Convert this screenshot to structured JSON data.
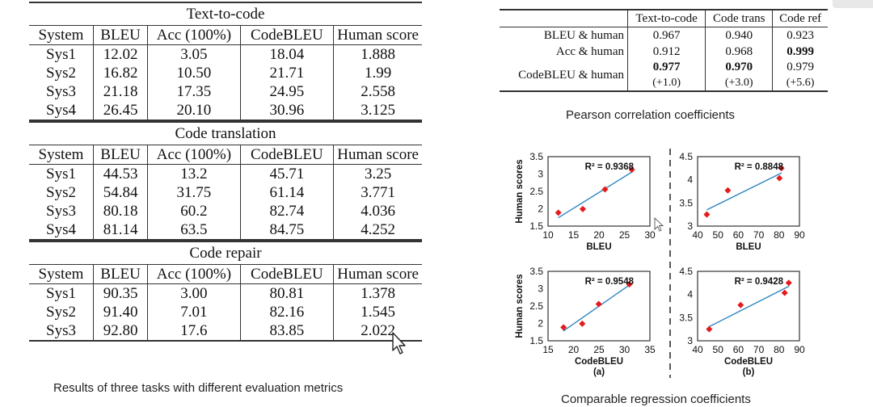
{
  "tasks_table": {
    "caption": "Results of three tasks with different evaluation metrics",
    "headers": [
      "System",
      "BLEU",
      "Acc (100%)",
      "CodeBLEU",
      "Human score"
    ],
    "sections": [
      {
        "title": "Text-to-code",
        "rows": [
          [
            "Sys1",
            "12.02",
            "3.05",
            "18.04",
            "1.888"
          ],
          [
            "Sys2",
            "16.82",
            "10.50",
            "21.71",
            "1.99"
          ],
          [
            "Sys3",
            "21.18",
            "17.35",
            "24.95",
            "2.558"
          ],
          [
            "Sys4",
            "26.45",
            "20.10",
            "30.96",
            "3.125"
          ]
        ]
      },
      {
        "title": "Code translation",
        "rows": [
          [
            "Sys1",
            "44.53",
            "13.2",
            "45.71",
            "3.25"
          ],
          [
            "Sys2",
            "54.84",
            "31.75",
            "61.14",
            "3.771"
          ],
          [
            "Sys3",
            "80.18",
            "60.2",
            "82.74",
            "4.036"
          ],
          [
            "Sys4",
            "81.14",
            "63.5",
            "84.75",
            "4.252"
          ]
        ]
      },
      {
        "title": "Code repair",
        "rows": [
          [
            "Sys1",
            "90.35",
            "3.00",
            "80.81",
            "1.378"
          ],
          [
            "Sys2",
            "91.40",
            "7.01",
            "82.16",
            "1.545"
          ],
          [
            "Sys3",
            "92.80",
            "17.6",
            "83.85",
            "2.022"
          ]
        ]
      }
    ]
  },
  "pearson_table": {
    "caption": "Pearson correlation coefficients",
    "headers": [
      "",
      "Text-to-code",
      "Code trans",
      "Code ref"
    ],
    "rows": [
      {
        "label": "BLEU & human",
        "cells": [
          {
            "v": "0.967",
            "bold": false,
            "sub": ""
          },
          {
            "v": "0.940",
            "bold": false,
            "sub": ""
          },
          {
            "v": "0.923",
            "bold": false,
            "sub": ""
          }
        ]
      },
      {
        "label": "Acc & human",
        "cells": [
          {
            "v": "0.912",
            "bold": false,
            "sub": ""
          },
          {
            "v": "0.968",
            "bold": false,
            "sub": ""
          },
          {
            "v": "0.999",
            "bold": true,
            "sub": ""
          }
        ]
      },
      {
        "label": "CodeBLEU & human",
        "cells": [
          {
            "v": "0.977",
            "bold": true,
            "sub": "(+1.0)"
          },
          {
            "v": "0.970",
            "bold": true,
            "sub": "(+3.0)"
          },
          {
            "v": "0.979",
            "bold": false,
            "sub": "(+5.6)"
          }
        ]
      }
    ]
  },
  "regression": {
    "caption": "Comparable regression coefficients",
    "marker_color": "#e41a1c",
    "line_color": "#2e86c1"
  },
  "chart_data": [
    {
      "type": "scatter",
      "id": "a-top",
      "xlabel": "BLEU",
      "ylabel": "Human scores",
      "panel": "",
      "xlim": [
        10,
        30
      ],
      "ylim": [
        1.5,
        3.5
      ],
      "xticks": [
        10,
        15,
        20,
        25,
        30
      ],
      "yticks": [
        1.5,
        2,
        2.5,
        3,
        3.5
      ],
      "points": [
        [
          12.02,
          1.888
        ],
        [
          16.82,
          1.99
        ],
        [
          21.18,
          2.558
        ],
        [
          26.45,
          3.125
        ]
      ],
      "fit": [
        [
          12,
          1.74
        ],
        [
          26.6,
          3.07
        ]
      ],
      "annotation": "R² = 0.9368"
    },
    {
      "type": "scatter",
      "id": "b-top",
      "xlabel": "BLEU",
      "ylabel": "",
      "panel": "",
      "xlim": [
        40,
        90
      ],
      "ylim": [
        3,
        4.5
      ],
      "xticks": [
        40,
        50,
        60,
        70,
        80,
        90
      ],
      "yticks": [
        3,
        3.5,
        4,
        4.5
      ],
      "points": [
        [
          44.53,
          3.25
        ],
        [
          54.84,
          3.771
        ],
        [
          80.18,
          4.036
        ],
        [
          81.14,
          4.252
        ]
      ],
      "fit": [
        [
          44.5,
          3.35
        ],
        [
          81.2,
          4.15
        ]
      ],
      "annotation": "R² = 0.8848"
    },
    {
      "type": "scatter",
      "id": "a-bottom",
      "xlabel": "CodeBLEU",
      "ylabel": "Human scores",
      "panel": "(a)",
      "xlim": [
        15,
        35
      ],
      "ylim": [
        1.5,
        3.5
      ],
      "xticks": [
        15,
        20,
        25,
        30,
        35
      ],
      "yticks": [
        1.5,
        2,
        2.5,
        3,
        3.5
      ],
      "points": [
        [
          18.04,
          1.888
        ],
        [
          21.71,
          1.99
        ],
        [
          24.95,
          2.558
        ],
        [
          30.96,
          3.125
        ]
      ],
      "fit": [
        [
          18,
          1.78
        ],
        [
          31,
          3.11
        ]
      ],
      "annotation": "R² = 0.9548"
    },
    {
      "type": "scatter",
      "id": "b-bottom",
      "xlabel": "CodeBLEU",
      "ylabel": "",
      "panel": "(b)",
      "xlim": [
        40,
        90
      ],
      "ylim": [
        3,
        4.5
      ],
      "xticks": [
        40,
        50,
        60,
        70,
        80,
        90
      ],
      "yticks": [
        3,
        3.5,
        4,
        4.5
      ],
      "points": [
        [
          45.71,
          3.25
        ],
        [
          61.14,
          3.771
        ],
        [
          82.74,
          4.036
        ],
        [
          84.75,
          4.252
        ]
      ],
      "fit": [
        [
          45.5,
          3.3
        ],
        [
          84.9,
          4.18
        ]
      ],
      "annotation": "R² = 0.9428"
    }
  ]
}
